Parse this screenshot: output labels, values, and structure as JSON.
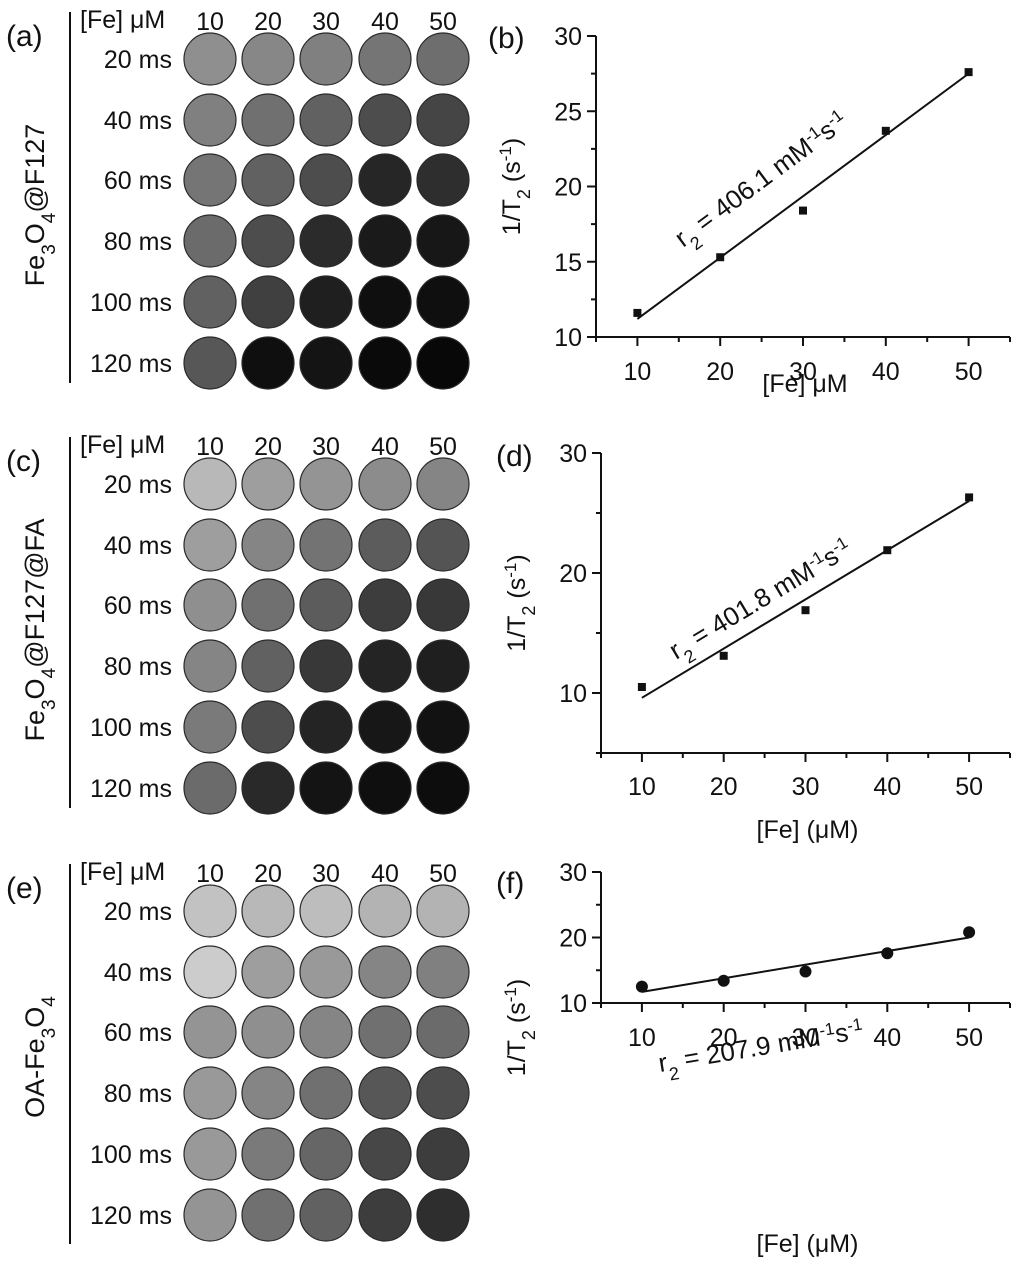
{
  "panels": [
    {
      "image_label": "(a)",
      "chart_label": "(b)",
      "sample_name": "Fe",
      "sample_sub1": "3",
      "sample_mid": "O",
      "sample_sub2": "4",
      "sample_suffix": "@F127",
      "sample_prefix": "",
      "header": "[Fe] μM",
      "concentrations": [
        "10",
        "20",
        "30",
        "40",
        "50"
      ],
      "echo_times": [
        "20 ms",
        "40 ms",
        "60 ms",
        "80 ms",
        "100 ms",
        "120 ms"
      ],
      "intensity": [
        [
          0.56,
          0.53,
          0.5,
          0.46,
          0.43
        ],
        [
          0.5,
          0.44,
          0.38,
          0.3,
          0.27
        ],
        [
          0.46,
          0.38,
          0.3,
          0.15,
          0.18
        ],
        [
          0.42,
          0.3,
          0.17,
          0.1,
          0.09
        ],
        [
          0.38,
          0.25,
          0.12,
          0.06,
          0.06
        ],
        [
          0.34,
          0.06,
          0.08,
          0.04,
          0.03
        ]
      ]
    },
    {
      "image_label": "(c)",
      "chart_label": "(d)",
      "sample_name": "Fe",
      "sample_sub1": "3",
      "sample_mid": "O",
      "sample_sub2": "4",
      "sample_suffix": "@F127@FA",
      "sample_prefix": "",
      "header": "[Fe] μM",
      "concentrations": [
        "10",
        "20",
        "30",
        "40",
        "50"
      ],
      "echo_times": [
        "20 ms",
        "40 ms",
        "60 ms",
        "80 ms",
        "100 ms",
        "120 ms"
      ],
      "intensity": [
        [
          0.72,
          0.62,
          0.58,
          0.55,
          0.52
        ],
        [
          0.62,
          0.52,
          0.45,
          0.36,
          0.33
        ],
        [
          0.56,
          0.44,
          0.36,
          0.24,
          0.22
        ],
        [
          0.52,
          0.38,
          0.22,
          0.14,
          0.12
        ],
        [
          0.48,
          0.3,
          0.14,
          0.09,
          0.07
        ],
        [
          0.42,
          0.16,
          0.08,
          0.06,
          0.05
        ]
      ]
    },
    {
      "image_label": "(e)",
      "chart_label": "(f)",
      "sample_prefix": "OA-",
      "sample_name": "Fe",
      "sample_sub1": "3",
      "sample_mid": "O",
      "sample_sub2": "4",
      "sample_suffix": "",
      "header": "[Fe] μM",
      "concentrations": [
        "10",
        "20",
        "30",
        "40",
        "50"
      ],
      "echo_times": [
        "20 ms",
        "40 ms",
        "60 ms",
        "80 ms",
        "100 ms",
        "120 ms"
      ],
      "intensity": [
        [
          0.76,
          0.72,
          0.74,
          0.7,
          0.7
        ],
        [
          0.8,
          0.62,
          0.6,
          0.52,
          0.5
        ],
        [
          0.58,
          0.56,
          0.52,
          0.44,
          0.42
        ],
        [
          0.6,
          0.52,
          0.44,
          0.34,
          0.3
        ],
        [
          0.6,
          0.48,
          0.4,
          0.28,
          0.24
        ],
        [
          0.58,
          0.44,
          0.38,
          0.24,
          0.18
        ]
      ]
    }
  ],
  "chart_data": [
    {
      "type": "scatter",
      "label": "(b)",
      "x": [
        10,
        20,
        30,
        40,
        50
      ],
      "y": [
        11.6,
        15.3,
        18.4,
        23.7,
        27.6
      ],
      "marker": "square",
      "fit_line": {
        "x": [
          10,
          50
        ],
        "y": [
          11.2,
          27.5
        ]
      },
      "annotation": {
        "lhs": "r",
        "sub": "2",
        "value": " = 406.1 mM",
        "sup1": "-1",
        "mid": "s",
        "sup2": "-1"
      },
      "ylabel": {
        "main": "1/T",
        "sub": "2",
        "unit_open": " (s",
        "sup": "-1",
        "unit_close": ")"
      },
      "xlabel": "[Fe] μM",
      "xlim": [
        5,
        55
      ],
      "ylim": [
        10,
        30
      ],
      "xticks": [
        "10",
        "20",
        "30",
        "40",
        "50"
      ],
      "yticks": [
        "10",
        "15",
        "20",
        "25",
        "30"
      ],
      "xtick_values": [
        10,
        20,
        30,
        40,
        50
      ],
      "ytick_values": [
        10,
        15,
        20,
        25,
        30
      ]
    },
    {
      "type": "scatter",
      "label": "(d)",
      "x": [
        10,
        20,
        30,
        40,
        50
      ],
      "y": [
        10.5,
        13.1,
        16.9,
        21.9,
        26.3
      ],
      "marker": "square",
      "fit_line": {
        "x": [
          10,
          50
        ],
        "y": [
          9.6,
          26.0
        ]
      },
      "annotation": {
        "lhs": "r",
        "sub": "2",
        "value": " = 401.8 mM",
        "sup1": "-1",
        "mid": "s",
        "sup2": "-1"
      },
      "ylabel": {
        "main": "1/T",
        "sub": "2",
        "unit_open": " (s",
        "sup": "-1",
        "unit_close": ")"
      },
      "xlabel": "[Fe] (μM)",
      "xlim": [
        5,
        55
      ],
      "ylim": [
        5,
        30
      ],
      "xticks": [
        "10",
        "20",
        "30",
        "40",
        "50"
      ],
      "yticks": [
        "10",
        "20",
        "30"
      ],
      "xtick_values": [
        10,
        20,
        30,
        40,
        50
      ],
      "ytick_values": [
        10,
        20,
        30
      ]
    },
    {
      "type": "scatter",
      "label": "(f)",
      "x": [
        10,
        20,
        30,
        40,
        50
      ],
      "y": [
        12.5,
        13.4,
        14.8,
        17.6,
        20.8
      ],
      "marker": "circle",
      "fit_line": {
        "x": [
          10,
          50
        ],
        "y": [
          11.7,
          20.0
        ]
      },
      "annotation": {
        "lhs": "r",
        "sub": "2",
        "value": " = 207.9 mM",
        "sup1": "-1",
        "mid": "s",
        "sup2": "-1"
      },
      "ylabel": {
        "main": "1/T",
        "sub": "2",
        "unit_open": " (s",
        "sup": "-1",
        "unit_close": ")"
      },
      "xlabel": "[Fe] (μM)",
      "xlim": [
        5,
        55
      ],
      "ylim": [
        10,
        30
      ],
      "xticks": [
        "10",
        "20",
        "30",
        "40",
        "50"
      ],
      "yticks": [
        "10",
        "20",
        "30"
      ],
      "xtick_values": [
        10,
        20,
        30,
        40,
        50
      ],
      "ytick_values": [
        10,
        20,
        30
      ]
    }
  ]
}
